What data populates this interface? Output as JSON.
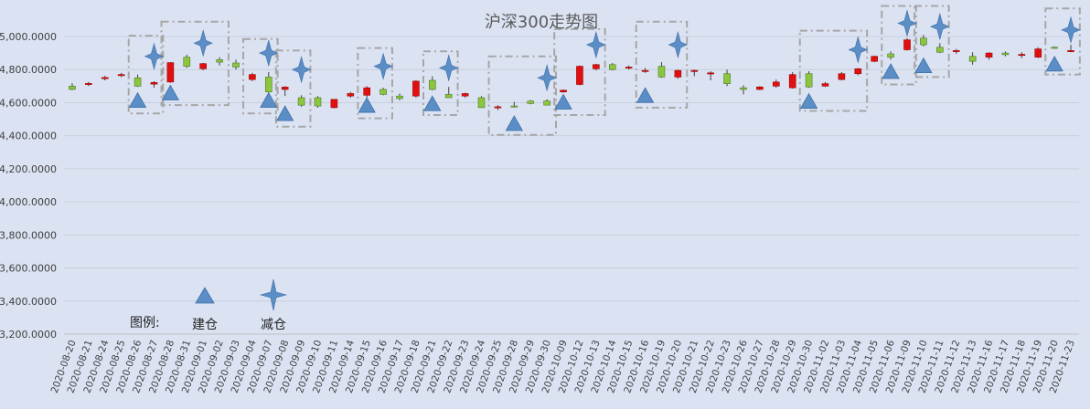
{
  "chart_data": {
    "type": "candlestick",
    "title": "沪深300走势图",
    "ylim": [
      3200,
      5100
    ],
    "y_ticks": [
      3200,
      3400,
      3600,
      3800,
      4000,
      4200,
      4400,
      4600,
      4800,
      5000
    ],
    "y_tick_labels": [
      "3,200.0000",
      "3,400.0000",
      "3,600.0000",
      "3,800.0000",
      "4,000.0000",
      "4,200.0000",
      "4,400.0000",
      "4,600.0000",
      "4,800.0000",
      "5,000.0000"
    ],
    "grid": true,
    "colors": {
      "up": "#e01010",
      "down": "#8cc63f",
      "marker": "#5b8ec6",
      "box": "#a6a6a6",
      "grid": "#c8cfdc"
    },
    "dates": [
      "2020-08-20",
      "2020-08-21",
      "2020-08-24",
      "2020-08-25",
      "2020-08-26",
      "2020-08-27",
      "2020-08-28",
      "2020-08-31",
      "2020-09-01",
      "2020-09-02",
      "2020-09-03",
      "2020-09-04",
      "2020-09-07",
      "2020-09-08",
      "2020-09-09",
      "2020-09-10",
      "2020-09-11",
      "2020-09-14",
      "2020-09-15",
      "2020-09-16",
      "2020-09-17",
      "2020-09-18",
      "2020-09-21",
      "2020-09-22",
      "2020-09-23",
      "2020-09-24",
      "2020-09-25",
      "2020-09-28",
      "2020-09-29",
      "2020-09-30",
      "2020-10-09",
      "2020-10-12",
      "2020-10-13",
      "2020-10-14",
      "2020-10-15",
      "2020-10-16",
      "2020-10-19",
      "2020-10-20",
      "2020-10-21",
      "2020-10-22",
      "2020-10-23",
      "2020-10-26",
      "2020-10-27",
      "2020-10-28",
      "2020-10-29",
      "2020-10-30",
      "2020-11-02",
      "2020-11-03",
      "2020-11-04",
      "2020-11-05",
      "2020-11-06",
      "2020-11-09",
      "2020-11-10",
      "2020-11-11",
      "2020-11-12",
      "2020-11-13",
      "2020-11-16",
      "2020-11-17",
      "2020-11-18",
      "2020-11-19",
      "2020-11-20",
      "2020-11-23"
    ],
    "ohlc": [
      [
        4700,
        4718,
        4675,
        4680
      ],
      [
        4712,
        4725,
        4700,
        4716
      ],
      [
        4745,
        4762,
        4735,
        4752
      ],
      [
        4765,
        4780,
        4755,
        4770
      ],
      [
        4750,
        4770,
        4695,
        4700
      ],
      [
        4712,
        4730,
        4690,
        4722
      ],
      [
        4725,
        4845,
        4720,
        4842
      ],
      [
        4875,
        4890,
        4810,
        4820
      ],
      [
        4805,
        4840,
        4795,
        4836
      ],
      [
        4860,
        4875,
        4825,
        4845
      ],
      [
        4840,
        4860,
        4800,
        4815
      ],
      [
        4740,
        4780,
        4730,
        4770
      ],
      [
        4755,
        4785,
        4655,
        4665
      ],
      [
        4680,
        4700,
        4640,
        4694
      ],
      [
        4630,
        4645,
        4575,
        4585
      ],
      [
        4630,
        4640,
        4570,
        4580
      ],
      [
        4570,
        4620,
        4565,
        4620
      ],
      [
        4640,
        4665,
        4630,
        4655
      ],
      [
        4645,
        4700,
        4630,
        4690
      ],
      [
        4680,
        4690,
        4645,
        4650
      ],
      [
        4640,
        4655,
        4615,
        4625
      ],
      [
        4640,
        4735,
        4630,
        4730
      ],
      [
        4735,
        4760,
        4675,
        4680
      ],
      [
        4650,
        4695,
        4630,
        4630
      ],
      [
        4640,
        4660,
        4630,
        4655
      ],
      [
        4630,
        4640,
        4570,
        4570
      ],
      [
        4570,
        4585,
        4555,
        4575
      ],
      [
        4580,
        4605,
        4570,
        4575
      ],
      [
        4610,
        4615,
        4590,
        4595
      ],
      [
        4610,
        4620,
        4585,
        4585
      ],
      [
        4665,
        4680,
        4660,
        4675
      ],
      [
        4710,
        4825,
        4705,
        4820
      ],
      [
        4805,
        4835,
        4795,
        4830
      ],
      [
        4830,
        4840,
        4795,
        4800
      ],
      [
        4810,
        4825,
        4800,
        4815
      ],
      [
        4790,
        4810,
        4780,
        4795
      ],
      [
        4820,
        4845,
        4750,
        4755
      ],
      [
        4755,
        4800,
        4745,
        4795
      ],
      [
        4790,
        4800,
        4760,
        4795
      ],
      [
        4775,
        4790,
        4735,
        4780
      ],
      [
        4775,
        4800,
        4700,
        4715
      ],
      [
        4690,
        4705,
        4650,
        4680
      ],
      [
        4680,
        4700,
        4675,
        4695
      ],
      [
        4700,
        4740,
        4690,
        4725
      ],
      [
        4690,
        4785,
        4685,
        4770
      ],
      [
        4775,
        4790,
        4690,
        4695
      ],
      [
        4700,
        4725,
        4695,
        4715
      ],
      [
        4740,
        4785,
        4735,
        4775
      ],
      [
        4775,
        4810,
        4765,
        4805
      ],
      [
        4850,
        4885,
        4845,
        4880
      ],
      [
        4895,
        4910,
        4860,
        4875
      ],
      [
        4920,
        4990,
        4915,
        4980
      ],
      [
        4990,
        5010,
        4940,
        4950
      ],
      [
        4935,
        4960,
        4900,
        4905
      ],
      [
        4910,
        4925,
        4895,
        4915
      ],
      [
        4880,
        4905,
        4830,
        4850
      ],
      [
        4875,
        4905,
        4860,
        4900
      ],
      [
        4900,
        4910,
        4880,
        4890
      ],
      [
        4890,
        4905,
        4870,
        4892
      ],
      [
        4875,
        4935,
        4870,
        4925
      ],
      [
        4935,
        4940,
        4925,
        4930
      ],
      [
        4910,
        4950,
        4905,
        4915
      ]
    ],
    "buy_signals": [
      {
        "date": "2020-08-26",
        "value": 4610
      },
      {
        "date": "2020-08-28",
        "value": 4655
      },
      {
        "date": "2020-09-07",
        "value": 4610
      },
      {
        "date": "2020-09-08",
        "value": 4530
      },
      {
        "date": "2020-09-15",
        "value": 4580
      },
      {
        "date": "2020-09-21",
        "value": 4590
      },
      {
        "date": "2020-09-28",
        "value": 4470
      },
      {
        "date": "2020-10-09",
        "value": 4600
      },
      {
        "date": "2020-10-16",
        "value": 4640
      },
      {
        "date": "2020-10-30",
        "value": 4605
      },
      {
        "date": "2020-11-06",
        "value": 4785
      },
      {
        "date": "2020-11-10",
        "value": 4820
      },
      {
        "date": "2020-11-20",
        "value": 4830
      }
    ],
    "sell_signals": [
      {
        "date": "2020-08-27",
        "value": 4880
      },
      {
        "date": "2020-09-01",
        "value": 4960
      },
      {
        "date": "2020-09-07",
        "value": 4900
      },
      {
        "date": "2020-09-09",
        "value": 4800
      },
      {
        "date": "2020-09-16",
        "value": 4820
      },
      {
        "date": "2020-09-22",
        "value": 4810
      },
      {
        "date": "2020-09-30",
        "value": 4750
      },
      {
        "date": "2020-10-13",
        "value": 4950
      },
      {
        "date": "2020-10-20",
        "value": 4950
      },
      {
        "date": "2020-11-04",
        "value": 4920
      },
      {
        "date": "2020-11-09",
        "value": 5080
      },
      {
        "date": "2020-11-11",
        "value": 5060
      },
      {
        "date": "2020-11-23",
        "value": 5040
      }
    ],
    "highlight_boxes": [
      {
        "from": "2020-08-26",
        "to": "2020-08-27",
        "ymin": 4535,
        "ymax": 5005
      },
      {
        "from": "2020-08-28",
        "to": "2020-09-02",
        "ymin": 4585,
        "ymax": 5090
      },
      {
        "from": "2020-09-04",
        "to": "2020-09-07",
        "ymin": 4535,
        "ymax": 4985
      },
      {
        "from": "2020-09-08",
        "to": "2020-09-09",
        "ymin": 4455,
        "ymax": 4915
      },
      {
        "from": "2020-09-15",
        "to": "2020-09-16",
        "ymin": 4505,
        "ymax": 4930
      },
      {
        "from": "2020-09-21",
        "to": "2020-09-22",
        "ymin": 4525,
        "ymax": 4910
      },
      {
        "from": "2020-09-25",
        "to": "2020-09-30",
        "ymin": 4405,
        "ymax": 4880
      },
      {
        "from": "2020-10-09",
        "to": "2020-10-13",
        "ymin": 4525,
        "ymax": 5045
      },
      {
        "from": "2020-10-16",
        "to": "2020-10-20",
        "ymin": 4570,
        "ymax": 5090
      },
      {
        "from": "2020-10-30",
        "to": "2020-11-04",
        "ymin": 4550,
        "ymax": 5035
      },
      {
        "from": "2020-11-06",
        "to": "2020-11-09",
        "ymin": 4710,
        "ymax": 5185
      },
      {
        "from": "2020-11-10",
        "to": "2020-11-11",
        "ymin": 4755,
        "ymax": 5185
      },
      {
        "from": "2020-11-20",
        "to": "2020-11-23",
        "ymin": 4770,
        "ymax": 5170
      }
    ],
    "legend": {
      "label": "图例:",
      "buy": "建仓",
      "sell": "减仓"
    }
  }
}
